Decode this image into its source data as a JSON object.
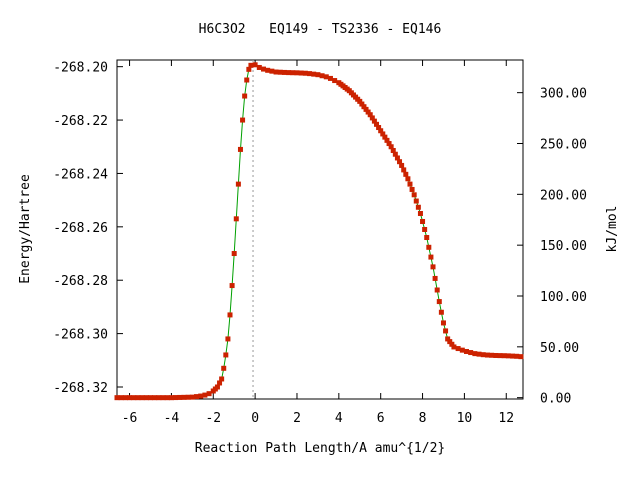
{
  "chart_data": {
    "type": "line",
    "title": "H6C3O2   EQ149 - TS2336 - EQ146",
    "xlabel": "Reaction Path Length/A amu^{1/2}",
    "ylabel": "Energy/Hartree",
    "y2label": "kJ/mol",
    "xlim": [
      -6.6,
      12.8
    ],
    "ylim": [
      -268.3245,
      -268.1975
    ],
    "xticks": [
      -6,
      -4,
      -2,
      0,
      2,
      4,
      6,
      8,
      10,
      12
    ],
    "xtick_labels": [
      "-6",
      "-4",
      "-2",
      "0",
      "2",
      "4",
      "6",
      "8",
      "10",
      "12"
    ],
    "yticks": [
      -268.32,
      -268.3,
      -268.28,
      -268.26,
      -268.24,
      -268.22,
      -268.2
    ],
    "ytick_labels": [
      "-268.32",
      "-268.30",
      "-268.28",
      "-268.26",
      "-268.24",
      "-268.22",
      "-268.20"
    ],
    "y2_ref_hartree": -268.324,
    "y2ticks": [
      0,
      50,
      100,
      150,
      200,
      250,
      300
    ],
    "y2tick_labels": [
      "0.00",
      "50.00",
      "100.00",
      "150.00",
      "200.00",
      "250.00",
      "300.00"
    ],
    "ts_x": -0.1,
    "grid": false,
    "legend": "none",
    "colors": {
      "line": "#00a000",
      "points": "#cc2200",
      "ts_marker": "#999999"
    },
    "series": [
      {
        "x": [
          -6.6,
          -5.0,
          -4.0,
          -3.0,
          -2.5,
          -2.2,
          -2.0,
          -1.8,
          -1.6,
          -1.5,
          -1.4,
          -1.3,
          -1.2,
          -1.1,
          -1.0,
          -0.9,
          -0.8,
          -0.7,
          -0.6,
          -0.5,
          -0.4,
          -0.3,
          -0.2,
          -0.1,
          0.0,
          0.2,
          0.5,
          1.0,
          1.5,
          2.0,
          2.5,
          3.0,
          3.5,
          4.0,
          4.5,
          5.0,
          5.5,
          6.0,
          6.5,
          7.0,
          7.3,
          7.6,
          7.9,
          8.2,
          8.5,
          8.8,
          9.0,
          9.2,
          9.5,
          10.0,
          10.5,
          11.0,
          11.5,
          12.0,
          12.5,
          12.8
        ],
        "y": [
          -268.324,
          -268.324,
          -268.324,
          -268.3238,
          -268.3233,
          -268.3225,
          -268.3215,
          -268.32,
          -268.317,
          -268.313,
          -268.308,
          -268.302,
          -268.293,
          -268.282,
          -268.27,
          -268.257,
          -268.244,
          -268.231,
          -268.22,
          -268.211,
          -268.205,
          -268.201,
          -268.1995,
          -268.199,
          -268.1993,
          -268.2003,
          -268.2012,
          -268.202,
          -268.2022,
          -268.2023,
          -268.2025,
          -268.203,
          -268.204,
          -268.206,
          -268.209,
          -268.213,
          -268.218,
          -268.224,
          -268.23,
          -268.237,
          -268.242,
          -268.248,
          -268.255,
          -268.264,
          -268.275,
          -268.288,
          -268.296,
          -268.302,
          -268.305,
          -268.3065,
          -268.3075,
          -268.308,
          -268.3082,
          -268.3083,
          -268.3085,
          -268.3087
        ]
      }
    ]
  }
}
